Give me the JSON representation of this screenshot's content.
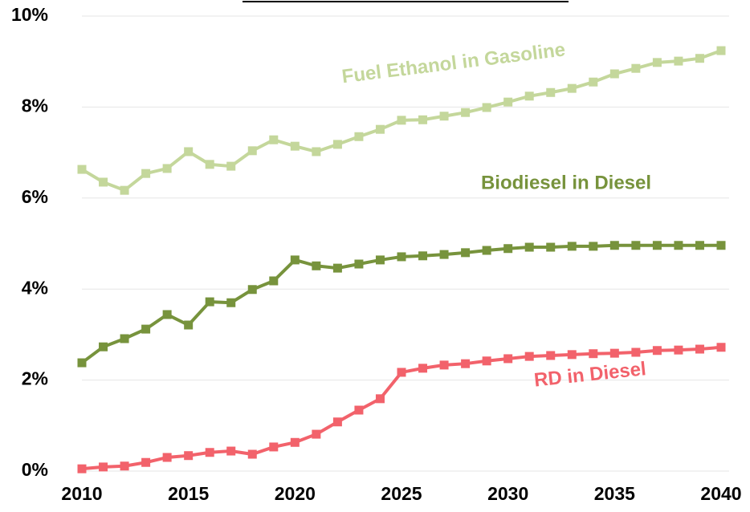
{
  "chart_data": {
    "type": "line",
    "x": [
      2010,
      2011,
      2012,
      2013,
      2014,
      2015,
      2016,
      2017,
      2018,
      2019,
      2020,
      2021,
      2022,
      2023,
      2024,
      2025,
      2026,
      2027,
      2028,
      2029,
      2030,
      2031,
      2032,
      2033,
      2034,
      2035,
      2036,
      2037,
      2038,
      2039,
      2040
    ],
    "series": [
      {
        "name": "Fuel Ethanol in Gasoline",
        "color": "#c4d79b",
        "values": [
          6.63,
          6.35,
          6.17,
          6.54,
          6.65,
          7.02,
          6.74,
          6.7,
          7.04,
          7.28,
          7.14,
          7.02,
          7.18,
          7.35,
          7.51,
          7.71,
          7.72,
          7.8,
          7.88,
          7.99,
          8.11,
          8.24,
          8.32,
          8.41,
          8.55,
          8.73,
          8.85,
          8.98,
          9.01,
          9.07,
          9.24
        ]
      },
      {
        "name": "Biodiesel in Diesel",
        "color": "#77933c",
        "values": [
          2.38,
          2.73,
          2.91,
          3.12,
          3.44,
          3.21,
          3.72,
          3.7,
          3.99,
          4.18,
          4.64,
          4.51,
          4.46,
          4.55,
          4.64,
          4.71,
          4.73,
          4.76,
          4.8,
          4.85,
          4.89,
          4.92,
          4.92,
          4.94,
          4.94,
          4.96,
          4.96,
          4.96,
          4.96,
          4.96,
          4.96
        ]
      },
      {
        "name": "RD in Diesel",
        "color": "#f2626b",
        "values": [
          0.05,
          0.09,
          0.11,
          0.19,
          0.3,
          0.34,
          0.41,
          0.44,
          0.37,
          0.53,
          0.63,
          0.81,
          1.08,
          1.34,
          1.59,
          2.17,
          2.26,
          2.33,
          2.36,
          2.42,
          2.47,
          2.52,
          2.54,
          2.56,
          2.58,
          2.59,
          2.61,
          2.65,
          2.66,
          2.68,
          2.72
        ]
      }
    ],
    "xlim": [
      2010,
      2040
    ],
    "xticks": [
      2010,
      2015,
      2020,
      2025,
      2030,
      2035,
      2040
    ],
    "ylim": [
      0,
      10
    ],
    "yticks": [
      {
        "value": 0,
        "label": "0%"
      },
      {
        "value": 2,
        "label": "2%"
      },
      {
        "value": 4,
        "label": "4%"
      },
      {
        "value": 6,
        "label": "6%"
      },
      {
        "value": 8,
        "label": "8%"
      },
      {
        "value": 10,
        "label": "10%"
      }
    ],
    "grid": true
  }
}
